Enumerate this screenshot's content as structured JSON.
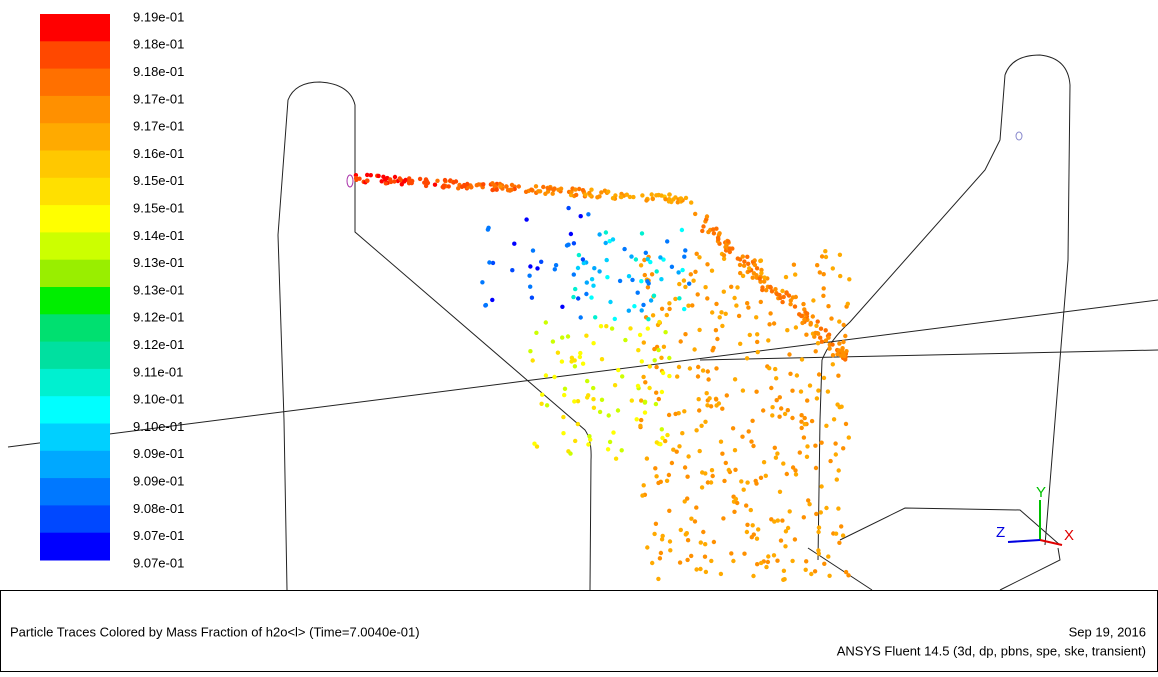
{
  "colorbar": {
    "labels": [
      "9.19e-01",
      "9.18e-01",
      "9.18e-01",
      "9.17e-01",
      "9.17e-01",
      "9.16e-01",
      "9.15e-01",
      "9.15e-01",
      "9.14e-01",
      "9.13e-01",
      "9.13e-01",
      "9.12e-01",
      "9.12e-01",
      "9.11e-01",
      "9.10e-01",
      "9.10e-01",
      "9.09e-01",
      "9.09e-01",
      "9.08e-01",
      "9.07e-01",
      "9.07e-01"
    ],
    "colors": [
      "#ff0000",
      "#ff4800",
      "#ff7000",
      "#ff9000",
      "#ffaa00",
      "#ffc800",
      "#ffe000",
      "#ffff00",
      "#ccff00",
      "#99ee00",
      "#00ee00",
      "#00e070",
      "#00e0a0",
      "#00f0d0",
      "#00ffff",
      "#00d0ff",
      "#00a8ff",
      "#0078ff",
      "#0048ff",
      "#0000ff"
    ]
  },
  "axes_triad": {
    "x": "X",
    "y": "Y",
    "z": "Z"
  },
  "caption": {
    "title": "Particle Traces Colored by Mass Fraction of h2o<l>  (Time=7.0040e-01)",
    "date": "Sep 19, 2016",
    "software": "ANSYS Fluent 14.5 (3d, dp, pbns, spe, ske, transient)"
  }
}
